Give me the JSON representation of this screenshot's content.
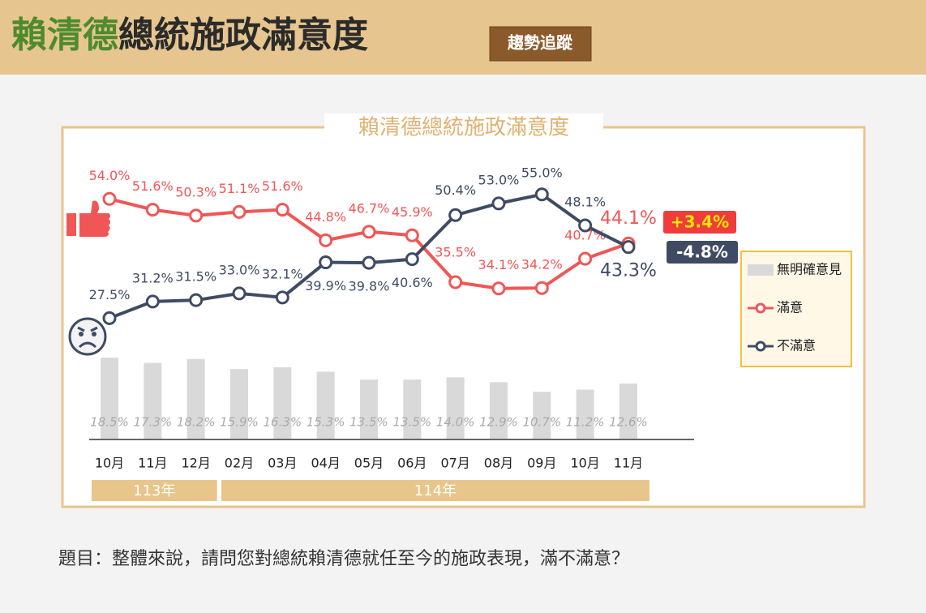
{
  "header": {
    "title_highlight": "賴清德",
    "title_rest": "總統施政滿意度",
    "badge": "趨勢追蹤"
  },
  "chart_data": {
    "type": "line",
    "title": "賴清德總統施政滿意度",
    "categories": [
      "10月",
      "11月",
      "12月",
      "02月",
      "03月",
      "04月",
      "05月",
      "06月",
      "07月",
      "08月",
      "09月",
      "10月",
      "11月"
    ],
    "year_groups": [
      "113年",
      "114年"
    ],
    "series": [
      {
        "name": "無明確意見",
        "type": "bar",
        "color": "#d9d9d9",
        "values": [
          18.5,
          17.3,
          18.2,
          15.9,
          16.3,
          15.3,
          13.5,
          13.5,
          14.0,
          12.9,
          10.7,
          11.2,
          12.6
        ],
        "value_labels": [
          "18.5%",
          "17.3%",
          "18.2%",
          "15.9%",
          "16.3%",
          "15.3%",
          "13.5%",
          "13.5%",
          "14.0%",
          "12.9%",
          "10.7%",
          "11.2%",
          "12.6%"
        ]
      },
      {
        "name": "滿意",
        "type": "line",
        "color": "#f05656",
        "values": [
          54.0,
          51.6,
          50.3,
          51.1,
          51.6,
          44.8,
          46.7,
          45.9,
          35.5,
          34.1,
          34.2,
          40.7,
          44.1
        ],
        "value_labels": [
          "54.0%",
          "51.6%",
          "50.3%",
          "51.1%",
          "51.6%",
          "44.8%",
          "46.7%",
          "45.9%",
          "35.5%",
          "34.1%",
          "34.2%",
          "40.7%",
          "44.1%"
        ]
      },
      {
        "name": "不滿意",
        "type": "line",
        "color": "#3f4b63",
        "values": [
          27.5,
          31.2,
          31.5,
          33.0,
          32.1,
          39.9,
          39.8,
          40.6,
          50.4,
          53.0,
          55.0,
          48.1,
          43.3
        ],
        "value_labels": [
          "27.5%",
          "31.2%",
          "31.5%",
          "33.0%",
          "32.1%",
          "39.9%",
          "39.8%",
          "40.6%",
          "50.4%",
          "53.0%",
          "55.0%",
          "48.1%",
          "43.3%"
        ]
      }
    ],
    "annotations": [
      {
        "text": "+3.4%",
        "color": "#f03c3c"
      },
      {
        "text": "-4.8%",
        "color": "#3f4b63"
      }
    ]
  },
  "question": "題目：整體來說，請問您對總統賴清德就任至今的施政表現，滿不滿意？"
}
